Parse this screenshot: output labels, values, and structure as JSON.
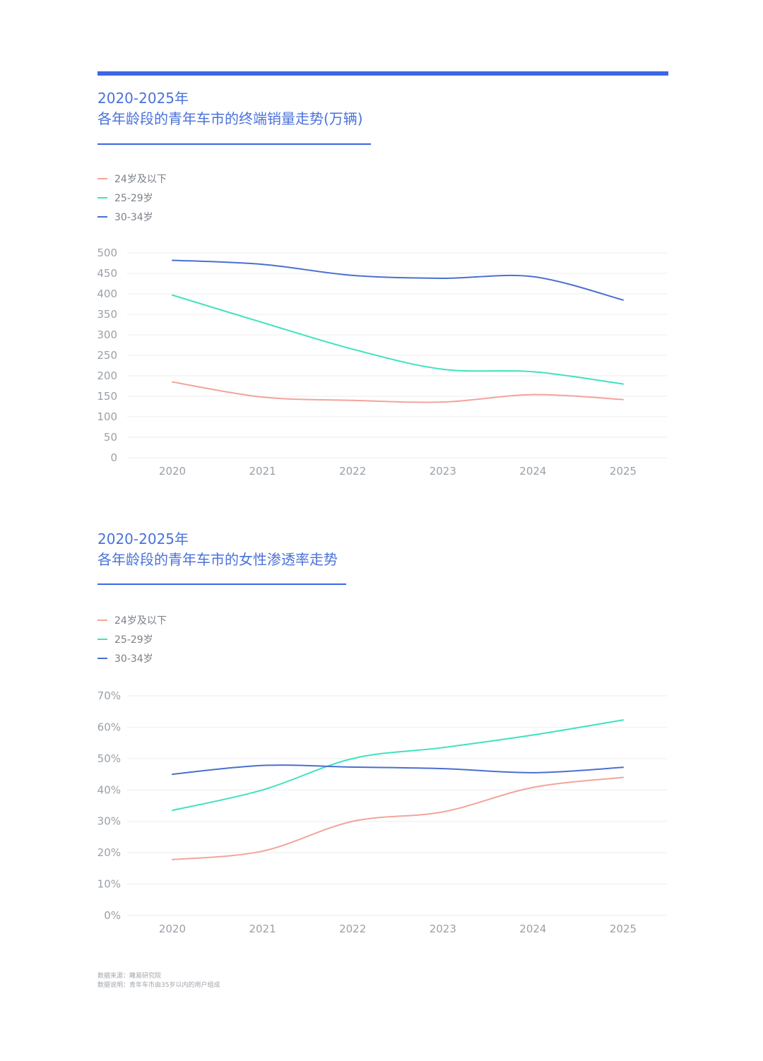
{
  "colors": {
    "accent": "#3b66e6",
    "title": "#4a72d9",
    "series_24": "#f2a49c",
    "series_25": "#3de3bd",
    "series_30": "#4a6fd0",
    "grid": "#eeeeee"
  },
  "chart1": {
    "title_line1": "2020-2025年",
    "title_line2": "各年龄段的青年车市的终端销量走势(万辆)"
  },
  "chart2": {
    "title_line1": "2020-2025年",
    "title_line2": "各年龄段的青年车市的女性渗透率走势"
  },
  "legend": [
    "24岁及以下",
    "25-29岁",
    "30-34岁"
  ],
  "source": {
    "line1": "数据来源：瞰易研究院",
    "line2": "数据说明：青年车市由35岁以内的用户组成"
  },
  "chart_data": [
    {
      "type": "line",
      "title": "2020-2025年 各年龄段的青年车市的终端销量走势(万辆)",
      "categories": [
        "2020",
        "2021",
        "2022",
        "2023",
        "2024",
        "2025"
      ],
      "yticks": [
        "0",
        "50",
        "100",
        "150",
        "200",
        "250",
        "300",
        "350",
        "400",
        "450",
        "500"
      ],
      "ylim": [
        0,
        500
      ],
      "grid": true,
      "legend_position": "top-left",
      "series": [
        {
          "name": "24岁及以下",
          "color": "#f2a49c",
          "values": [
            185,
            148,
            140,
            136,
            154,
            142
          ]
        },
        {
          "name": "25-29岁",
          "color": "#3de3bd",
          "values": [
            397,
            330,
            265,
            216,
            210,
            180
          ]
        },
        {
          "name": "30-34岁",
          "color": "#4a6fd0",
          "values": [
            482,
            472,
            445,
            438,
            442,
            385
          ]
        }
      ]
    },
    {
      "type": "line",
      "title": "2020-2025年 各年龄段的青年车市的女性渗透率走势",
      "categories": [
        "2020",
        "2021",
        "2022",
        "2023",
        "2024",
        "2025"
      ],
      "yticks": [
        "0%",
        "10%",
        "20%",
        "30%",
        "40%",
        "50%",
        "60%",
        "70%"
      ],
      "ylim": [
        0,
        70
      ],
      "grid": true,
      "legend_position": "top-left",
      "series": [
        {
          "name": "24岁及以下",
          "color": "#f2a49c",
          "values": [
            17.8,
            20.5,
            30,
            33,
            40.8,
            44
          ]
        },
        {
          "name": "25-29岁",
          "color": "#3de3bd",
          "values": [
            33.5,
            40,
            50,
            53.5,
            57.5,
            62.3
          ]
        },
        {
          "name": "30-34岁",
          "color": "#4a6fd0",
          "values": [
            45,
            47.8,
            47.3,
            46.8,
            45.5,
            47.2
          ]
        }
      ]
    }
  ]
}
